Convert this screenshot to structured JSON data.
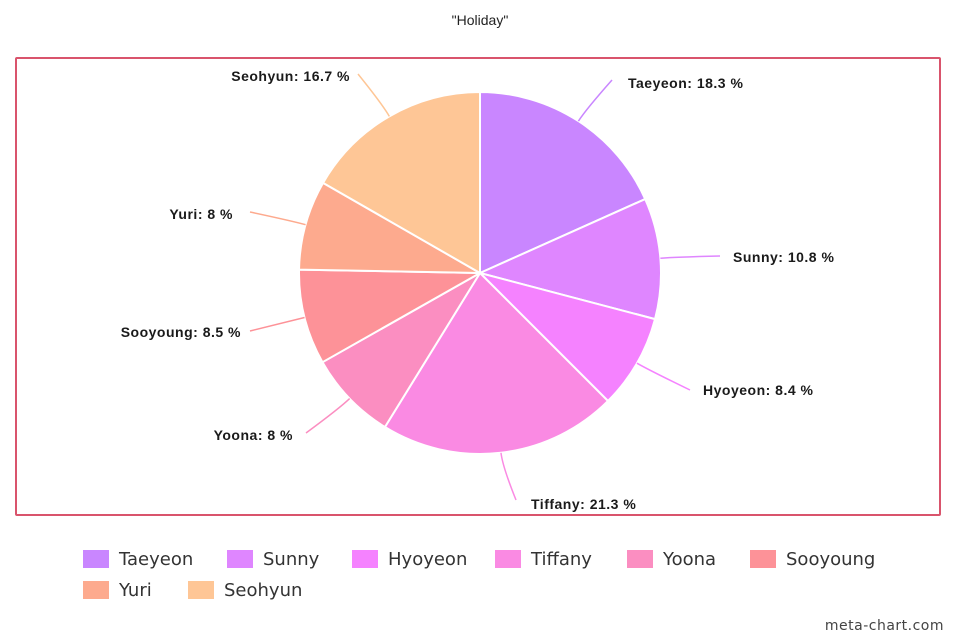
{
  "chart_data": {
    "type": "pie",
    "title": "\"Holiday\"",
    "slices": [
      {
        "name": "Taeyeon",
        "value": 18.3,
        "label": "Taeyeon: 18.3 %",
        "color": "#c986ff"
      },
      {
        "name": "Sunny",
        "value": 10.8,
        "label": "Sunny: 10.8 %",
        "color": "#df86ff"
      },
      {
        "name": "Hyoyeon",
        "value": 8.4,
        "label": "Hyoyeon: 8.4 %",
        "color": "#f582ff"
      },
      {
        "name": "Tiffany",
        "value": 21.3,
        "label": "Tiffany: 21.3 %",
        "color": "#fa8ae3"
      },
      {
        "name": "Yoona",
        "value": 8,
        "label": "Yoona: 8 %",
        "color": "#fb8ec1"
      },
      {
        "name": "Sooyoung",
        "value": 8.5,
        "label": "Sooyoung: 8.5 %",
        "color": "#fd9298"
      },
      {
        "name": "Yuri",
        "value": 8,
        "label": "Yuri: 8 %",
        "color": "#fdaa8e"
      },
      {
        "name": "Seohyun",
        "value": 16.7,
        "label": "Seohyun: 16.7 %",
        "color": "#fec696"
      }
    ],
    "legend_position": "bottom",
    "frame_color": "#d9546c"
  },
  "watermark": "meta-chart.com"
}
